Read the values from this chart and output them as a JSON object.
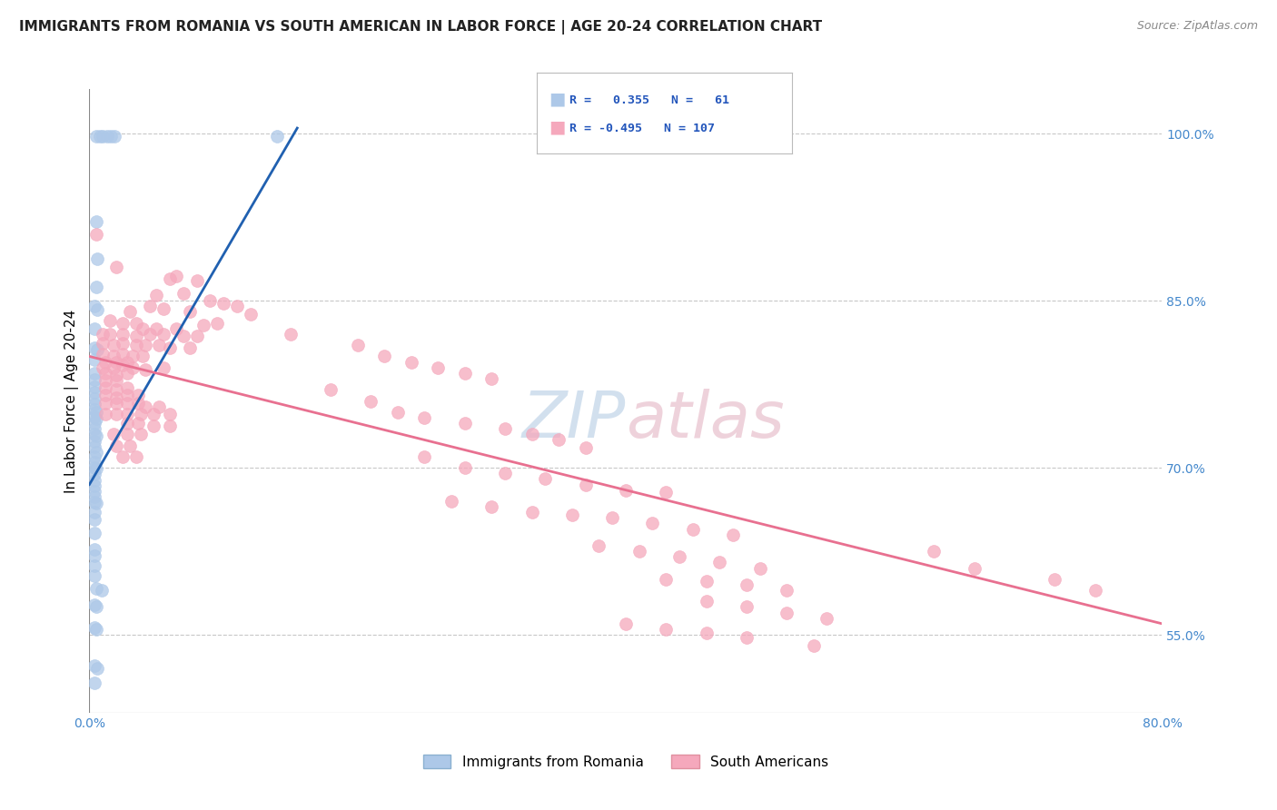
{
  "title": "IMMIGRANTS FROM ROMANIA VS SOUTH AMERICAN IN LABOR FORCE | AGE 20-24 CORRELATION CHART",
  "source": "Source: ZipAtlas.com",
  "ylabel": "In Labor Force | Age 20-24",
  "xlim": [
    0.0,
    0.8
  ],
  "ylim": [
    0.48,
    1.04
  ],
  "right_yticks": [
    1.0,
    0.85,
    0.7,
    0.55
  ],
  "right_yticklabels": [
    "100.0%",
    "85.0%",
    "70.0%",
    "55.0%"
  ],
  "blue_R": 0.355,
  "blue_N": 61,
  "pink_R": -0.495,
  "pink_N": 107,
  "blue_color": "#adc8e8",
  "pink_color": "#f5a8bc",
  "blue_line_color": "#2060b0",
  "pink_line_color": "#e87090",
  "legend_label_blue": "Immigrants from Romania",
  "legend_label_pink": "South Americans",
  "watermark_blue": "ZIP",
  "watermark_pink": "atlas",
  "watermark_color_blue": "#c0d4e8",
  "watermark_color_pink": "#e8c0cc",
  "blue_scatter": [
    [
      0.005,
      0.998
    ],
    [
      0.008,
      0.998
    ],
    [
      0.01,
      0.998
    ],
    [
      0.013,
      0.998
    ],
    [
      0.016,
      0.998
    ],
    [
      0.019,
      0.998
    ],
    [
      0.005,
      0.921
    ],
    [
      0.006,
      0.888
    ],
    [
      0.005,
      0.862
    ],
    [
      0.004,
      0.845
    ],
    [
      0.006,
      0.842
    ],
    [
      0.004,
      0.825
    ],
    [
      0.004,
      0.808
    ],
    [
      0.006,
      0.806
    ],
    [
      0.004,
      0.797
    ],
    [
      0.004,
      0.785
    ],
    [
      0.004,
      0.779
    ],
    [
      0.004,
      0.773
    ],
    [
      0.004,
      0.768
    ],
    [
      0.004,
      0.762
    ],
    [
      0.004,
      0.757
    ],
    [
      0.004,
      0.752
    ],
    [
      0.005,
      0.75
    ],
    [
      0.004,
      0.746
    ],
    [
      0.005,
      0.744
    ],
    [
      0.004,
      0.74
    ],
    [
      0.004,
      0.735
    ],
    [
      0.004,
      0.73
    ],
    [
      0.005,
      0.729
    ],
    [
      0.004,
      0.724
    ],
    [
      0.004,
      0.719
    ],
    [
      0.005,
      0.714
    ],
    [
      0.004,
      0.71
    ],
    [
      0.004,
      0.705
    ],
    [
      0.004,
      0.7
    ],
    [
      0.005,
      0.699
    ],
    [
      0.004,
      0.694
    ],
    [
      0.004,
      0.689
    ],
    [
      0.004,
      0.684
    ],
    [
      0.004,
      0.679
    ],
    [
      0.004,
      0.674
    ],
    [
      0.004,
      0.669
    ],
    [
      0.005,
      0.668
    ],
    [
      0.004,
      0.66
    ],
    [
      0.004,
      0.654
    ],
    [
      0.004,
      0.641
    ],
    [
      0.004,
      0.627
    ],
    [
      0.004,
      0.621
    ],
    [
      0.004,
      0.612
    ],
    [
      0.004,
      0.603
    ],
    [
      0.005,
      0.592
    ],
    [
      0.009,
      0.59
    ],
    [
      0.004,
      0.577
    ],
    [
      0.005,
      0.575
    ],
    [
      0.004,
      0.557
    ],
    [
      0.005,
      0.555
    ],
    [
      0.14,
      0.998
    ],
    [
      0.004,
      0.522
    ],
    [
      0.006,
      0.52
    ],
    [
      0.004,
      0.507
    ]
  ],
  "pink_scatter": [
    [
      0.005,
      0.91
    ],
    [
      0.02,
      0.88
    ],
    [
      0.06,
      0.87
    ],
    [
      0.065,
      0.872
    ],
    [
      0.08,
      0.868
    ],
    [
      0.05,
      0.855
    ],
    [
      0.07,
      0.857
    ],
    [
      0.09,
      0.85
    ],
    [
      0.1,
      0.848
    ],
    [
      0.11,
      0.845
    ],
    [
      0.03,
      0.84
    ],
    [
      0.045,
      0.845
    ],
    [
      0.055,
      0.843
    ],
    [
      0.075,
      0.84
    ],
    [
      0.12,
      0.838
    ],
    [
      0.015,
      0.832
    ],
    [
      0.025,
      0.83
    ],
    [
      0.035,
      0.83
    ],
    [
      0.085,
      0.828
    ],
    [
      0.095,
      0.83
    ],
    [
      0.04,
      0.825
    ],
    [
      0.05,
      0.825
    ],
    [
      0.065,
      0.825
    ],
    [
      0.01,
      0.82
    ],
    [
      0.015,
      0.82
    ],
    [
      0.025,
      0.82
    ],
    [
      0.035,
      0.818
    ],
    [
      0.045,
      0.82
    ],
    [
      0.055,
      0.82
    ],
    [
      0.07,
      0.818
    ],
    [
      0.08,
      0.818
    ],
    [
      0.01,
      0.812
    ],
    [
      0.018,
      0.81
    ],
    [
      0.025,
      0.812
    ],
    [
      0.035,
      0.81
    ],
    [
      0.042,
      0.81
    ],
    [
      0.052,
      0.81
    ],
    [
      0.06,
      0.808
    ],
    [
      0.075,
      0.808
    ],
    [
      0.01,
      0.802
    ],
    [
      0.018,
      0.8
    ],
    [
      0.025,
      0.802
    ],
    [
      0.032,
      0.8
    ],
    [
      0.04,
      0.8
    ],
    [
      0.012,
      0.795
    ],
    [
      0.02,
      0.795
    ],
    [
      0.028,
      0.795
    ],
    [
      0.01,
      0.79
    ],
    [
      0.018,
      0.79
    ],
    [
      0.025,
      0.792
    ],
    [
      0.032,
      0.79
    ],
    [
      0.042,
      0.788
    ],
    [
      0.055,
      0.79
    ],
    [
      0.012,
      0.785
    ],
    [
      0.02,
      0.783
    ],
    [
      0.028,
      0.785
    ],
    [
      0.012,
      0.778
    ],
    [
      0.02,
      0.778
    ],
    [
      0.012,
      0.772
    ],
    [
      0.02,
      0.77
    ],
    [
      0.028,
      0.772
    ],
    [
      0.012,
      0.765
    ],
    [
      0.02,
      0.763
    ],
    [
      0.028,
      0.765
    ],
    [
      0.036,
      0.765
    ],
    [
      0.012,
      0.758
    ],
    [
      0.02,
      0.758
    ],
    [
      0.028,
      0.758
    ],
    [
      0.036,
      0.758
    ],
    [
      0.042,
      0.755
    ],
    [
      0.052,
      0.755
    ],
    [
      0.012,
      0.748
    ],
    [
      0.02,
      0.748
    ],
    [
      0.028,
      0.748
    ],
    [
      0.038,
      0.748
    ],
    [
      0.048,
      0.748
    ],
    [
      0.06,
      0.748
    ],
    [
      0.028,
      0.74
    ],
    [
      0.036,
      0.74
    ],
    [
      0.048,
      0.738
    ],
    [
      0.06,
      0.738
    ],
    [
      0.018,
      0.73
    ],
    [
      0.028,
      0.73
    ],
    [
      0.038,
      0.73
    ],
    [
      0.02,
      0.72
    ],
    [
      0.03,
      0.72
    ],
    [
      0.025,
      0.71
    ],
    [
      0.035,
      0.71
    ],
    [
      0.15,
      0.82
    ],
    [
      0.2,
      0.81
    ],
    [
      0.22,
      0.8
    ],
    [
      0.24,
      0.795
    ],
    [
      0.26,
      0.79
    ],
    [
      0.28,
      0.785
    ],
    [
      0.3,
      0.78
    ],
    [
      0.18,
      0.77
    ],
    [
      0.21,
      0.76
    ],
    [
      0.23,
      0.75
    ],
    [
      0.25,
      0.745
    ],
    [
      0.28,
      0.74
    ],
    [
      0.31,
      0.735
    ],
    [
      0.33,
      0.73
    ],
    [
      0.35,
      0.725
    ],
    [
      0.37,
      0.718
    ],
    [
      0.25,
      0.71
    ],
    [
      0.28,
      0.7
    ],
    [
      0.31,
      0.695
    ],
    [
      0.34,
      0.69
    ],
    [
      0.37,
      0.685
    ],
    [
      0.4,
      0.68
    ],
    [
      0.43,
      0.678
    ],
    [
      0.27,
      0.67
    ],
    [
      0.3,
      0.665
    ],
    [
      0.33,
      0.66
    ],
    [
      0.36,
      0.658
    ],
    [
      0.39,
      0.655
    ],
    [
      0.42,
      0.65
    ],
    [
      0.45,
      0.645
    ],
    [
      0.48,
      0.64
    ],
    [
      0.38,
      0.63
    ],
    [
      0.41,
      0.625
    ],
    [
      0.44,
      0.62
    ],
    [
      0.47,
      0.615
    ],
    [
      0.5,
      0.61
    ],
    [
      0.43,
      0.6
    ],
    [
      0.46,
      0.598
    ],
    [
      0.49,
      0.595
    ],
    [
      0.52,
      0.59
    ],
    [
      0.46,
      0.58
    ],
    [
      0.49,
      0.575
    ],
    [
      0.52,
      0.57
    ],
    [
      0.55,
      0.565
    ],
    [
      0.4,
      0.56
    ],
    [
      0.43,
      0.555
    ],
    [
      0.46,
      0.552
    ],
    [
      0.49,
      0.548
    ],
    [
      0.54,
      0.54
    ],
    [
      0.63,
      0.625
    ],
    [
      0.66,
      0.61
    ],
    [
      0.72,
      0.6
    ],
    [
      0.75,
      0.59
    ]
  ]
}
